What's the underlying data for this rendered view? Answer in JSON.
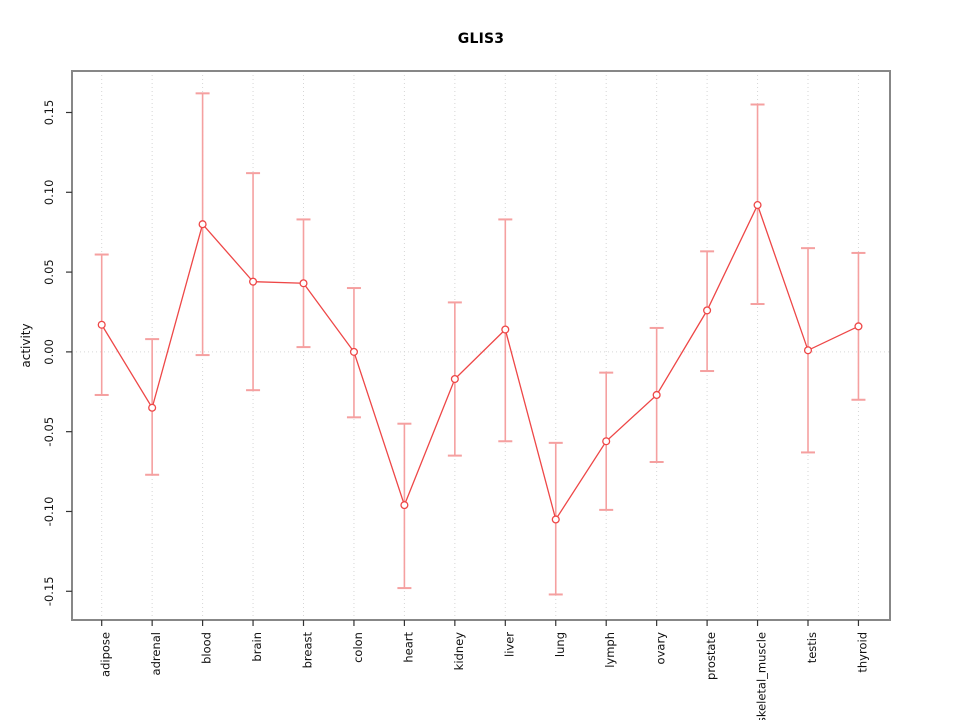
{
  "chart_data": {
    "type": "line",
    "title": "GLIS3",
    "xlabel": "",
    "ylabel": "activity",
    "categories": [
      "adipose",
      "adrenal",
      "blood",
      "brain",
      "breast",
      "colon",
      "heart",
      "kidney",
      "liver",
      "lung",
      "lymph",
      "ovary",
      "prostate",
      "skeletal_muscle",
      "testis",
      "thyroid"
    ],
    "series": [
      {
        "name": "activity",
        "values": [
          0.017,
          -0.035,
          0.08,
          0.044,
          0.043,
          0.0,
          -0.096,
          -0.017,
          0.014,
          -0.105,
          -0.056,
          -0.027,
          0.026,
          0.092,
          0.001,
          0.016
        ],
        "lower": [
          -0.027,
          -0.077,
          -0.002,
          -0.024,
          0.003,
          -0.041,
          -0.148,
          -0.065,
          -0.056,
          -0.152,
          -0.099,
          -0.069,
          -0.012,
          0.03,
          -0.063,
          -0.03
        ],
        "upper": [
          0.061,
          0.008,
          0.162,
          0.112,
          0.083,
          0.04,
          -0.045,
          0.031,
          0.083,
          -0.057,
          -0.013,
          0.015,
          0.063,
          0.155,
          0.065,
          0.062
        ]
      }
    ],
    "yticks": [
      -0.15,
      -0.1,
      -0.05,
      0.0,
      0.05,
      0.1,
      0.15
    ],
    "ylim": [
      -0.168,
      0.176
    ],
    "grid": "vertical dotted gridline at each category; dotted horizontal line at zero; no legend",
    "legend_position": "none",
    "colors": {
      "point_line": "#ee4747",
      "error_bar": "#f5a0a0",
      "plot_border": "#878787",
      "gridline": "#d6d6d6",
      "tick": "#333333",
      "text": "#111111"
    }
  }
}
